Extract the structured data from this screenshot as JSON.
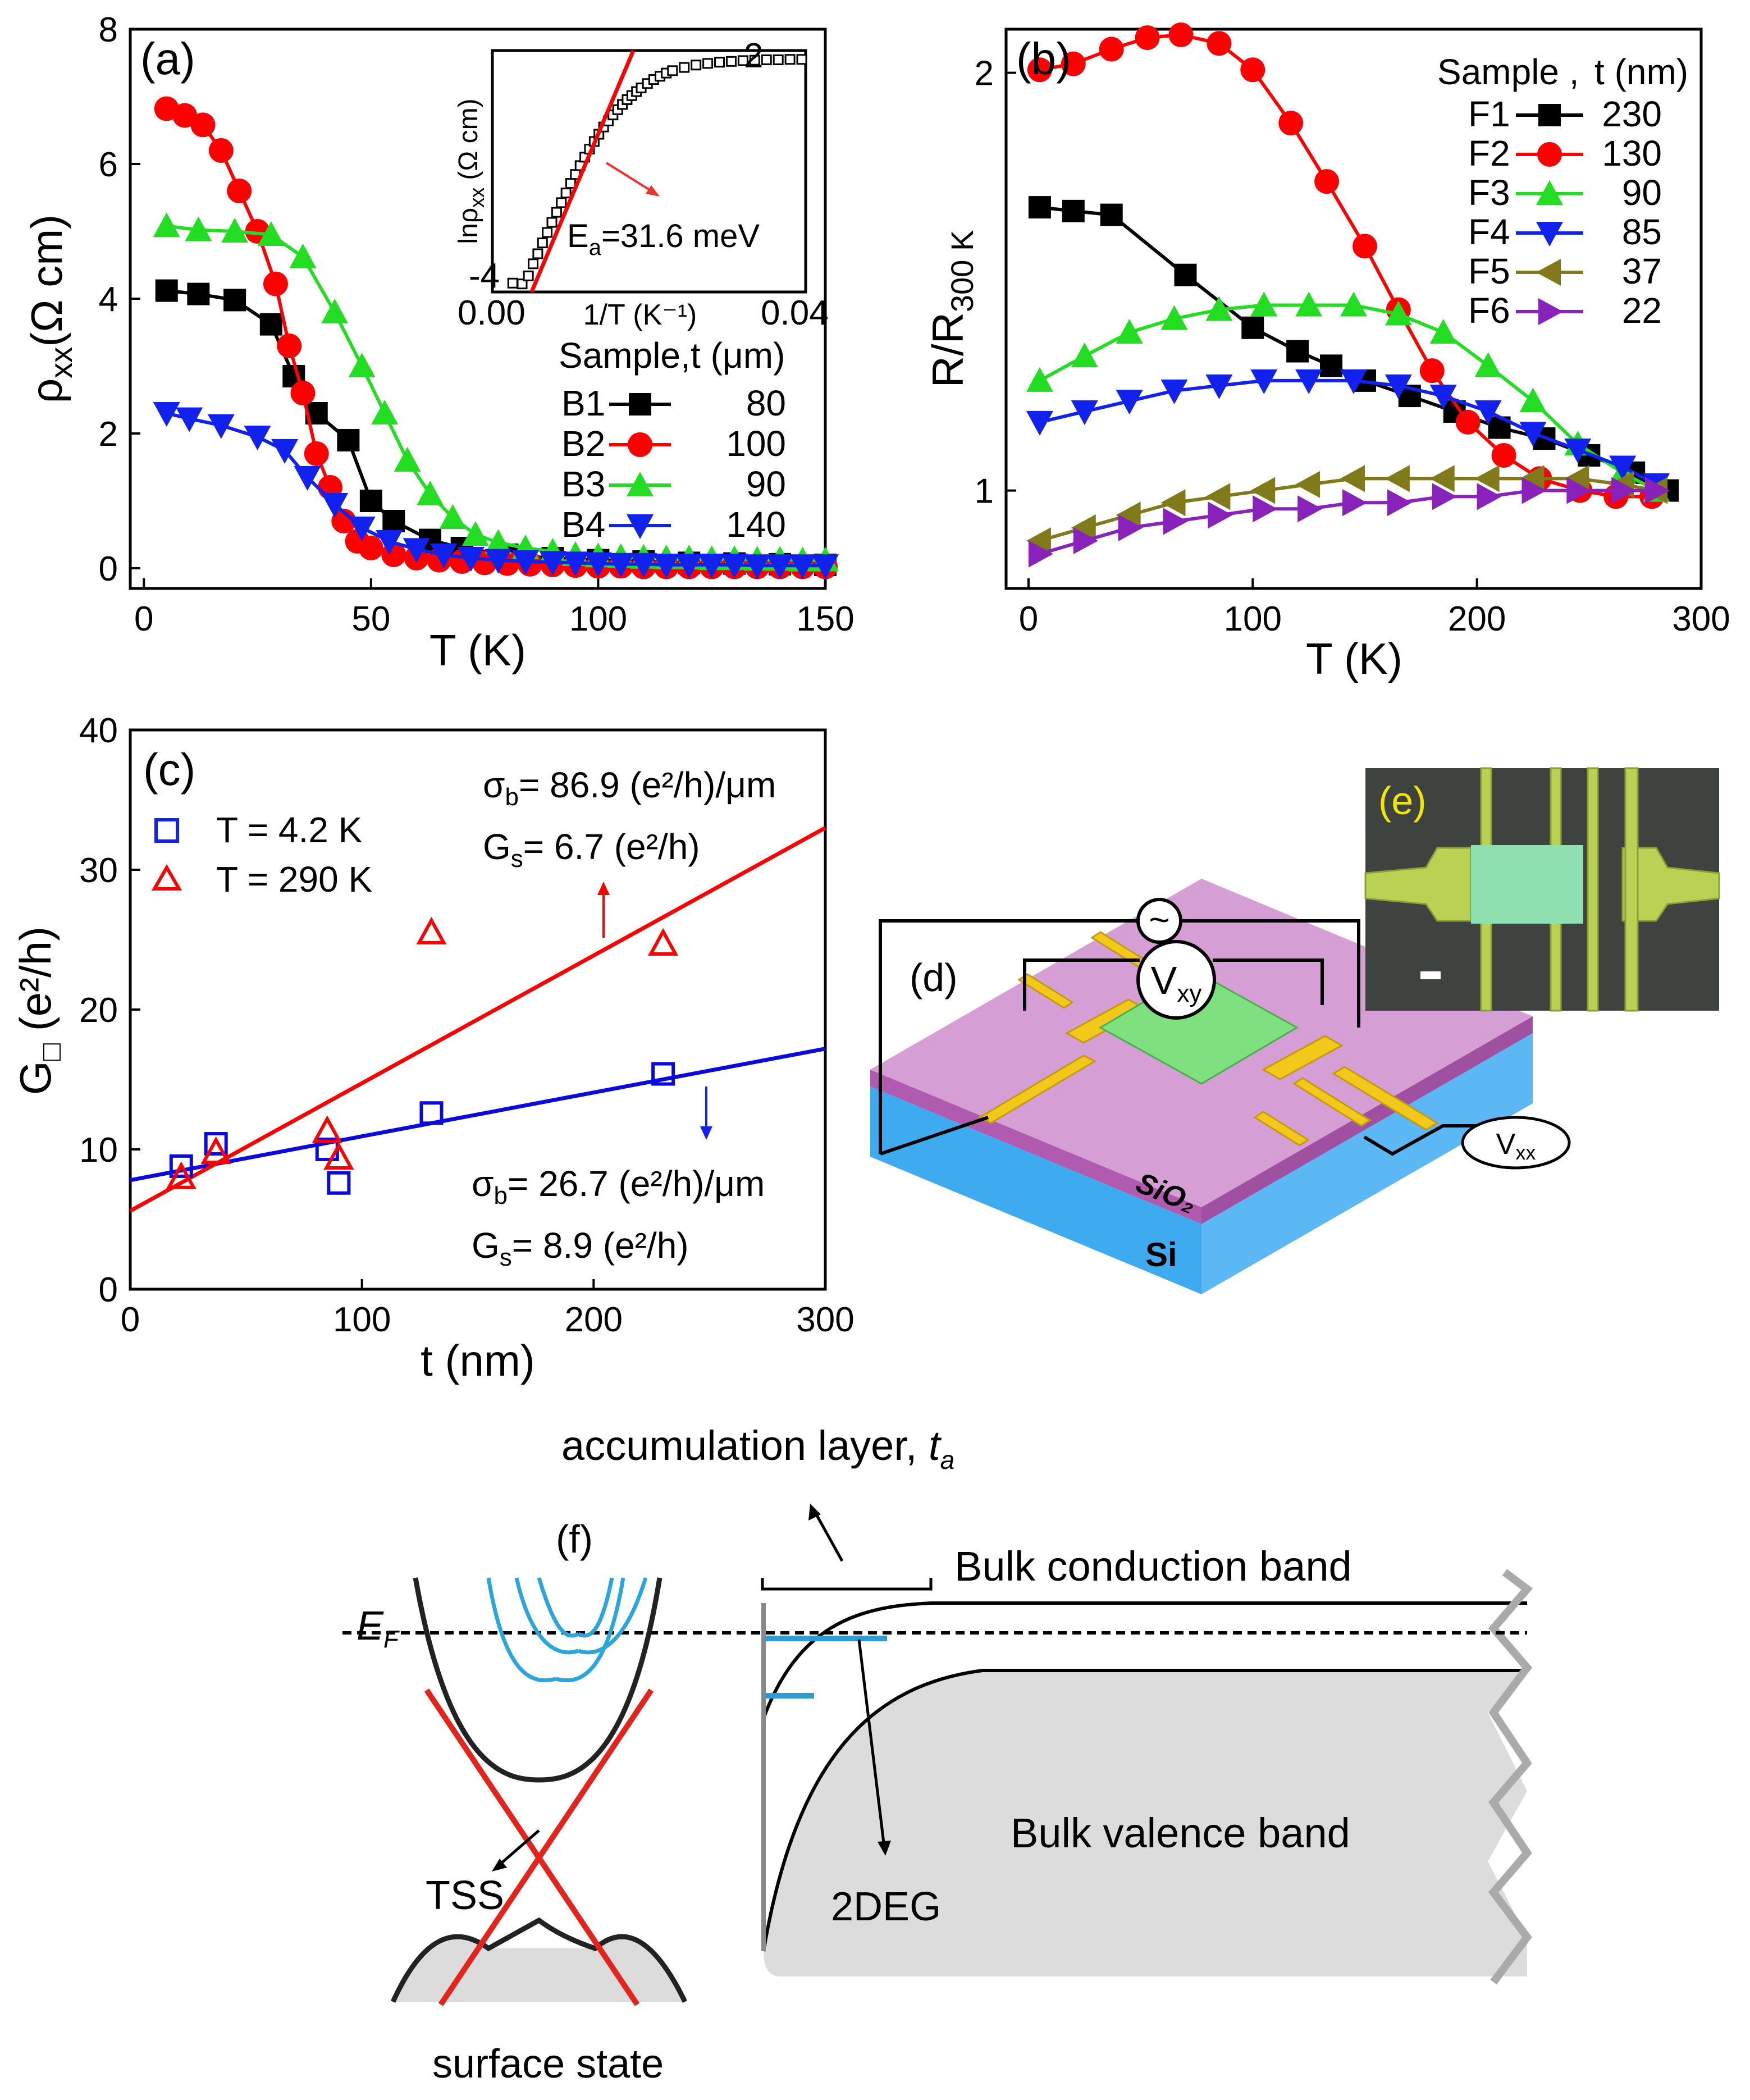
{
  "colors": {
    "B1": "#000000",
    "B2": "#ff0000",
    "B3": "#22dd22",
    "B4": "#1122ee",
    "F5": "#807a1a",
    "F6": "#8822bb",
    "red_fit": "#ff0000",
    "blue_fit": "#0a0adc"
  },
  "chart_data": [
    {
      "id": "a",
      "type": "line",
      "panel_label": "(a)",
      "xlabel": "T (K)",
      "ylabel": "ρ",
      "ylabel_sub": "xx",
      "ylabel_unit": "(Ω cm)",
      "xlim": [
        -3,
        150
      ],
      "ylim": [
        -0.3,
        8
      ],
      "xticks": [
        "0",
        "50",
        "100",
        "150"
      ],
      "yticks": [
        "0",
        "2",
        "4",
        "6",
        "8"
      ],
      "legend_title": "Sample,",
      "legend_title2": "t (μm)",
      "series": [
        {
          "name": "B1",
          "value": "80",
          "marker": "square",
          "x": [
            5,
            12,
            20,
            28,
            33,
            38,
            45,
            50,
            55,
            63,
            70,
            80,
            90,
            100,
            110,
            120,
            130,
            140,
            150
          ],
          "y": [
            4.12,
            4.07,
            3.98,
            3.62,
            2.85,
            2.3,
            1.9,
            1.0,
            0.7,
            0.42,
            0.3,
            0.2,
            0.15,
            0.12,
            0.1,
            0.08,
            0.07,
            0.06,
            0.05
          ]
        },
        {
          "name": "B2",
          "value": "100",
          "marker": "circle",
          "x": [
            5,
            9,
            13,
            17,
            21,
            25,
            29,
            32,
            35,
            38,
            41,
            44,
            47,
            50,
            55,
            60,
            65,
            70,
            75,
            80,
            85,
            90,
            95,
            100,
            105,
            110,
            115,
            120,
            125,
            130,
            135,
            140,
            145,
            150
          ],
          "y": [
            6.82,
            6.72,
            6.58,
            6.2,
            5.6,
            5.0,
            4.22,
            3.3,
            2.6,
            1.7,
            1.2,
            0.7,
            0.4,
            0.3,
            0.2,
            0.15,
            0.12,
            0.1,
            0.08,
            0.07,
            0.06,
            0.05,
            0.04,
            0.03,
            0.03,
            0.02,
            0.02,
            0.02,
            0.02,
            0.02,
            0.02,
            0.02,
            0.02,
            0.02
          ]
        },
        {
          "name": "B3",
          "value": "90",
          "marker": "triangle-up",
          "x": [
            5,
            12,
            20,
            28,
            35,
            42,
            48,
            53,
            58,
            63,
            68,
            73,
            78,
            84,
            90,
            95,
            100,
            105,
            110,
            115,
            120,
            125,
            130,
            135,
            140,
            145,
            150
          ],
          "y": [
            5.08,
            5.02,
            5.0,
            4.95,
            4.62,
            3.8,
            3.0,
            2.3,
            1.6,
            1.1,
            0.75,
            0.5,
            0.38,
            0.3,
            0.25,
            0.2,
            0.18,
            0.17,
            0.16,
            0.15,
            0.15,
            0.14,
            0.14,
            0.13,
            0.13,
            0.12,
            0.12
          ]
        },
        {
          "name": "B4",
          "value": "140",
          "marker": "triangle-down",
          "x": [
            5,
            10,
            17,
            25,
            31,
            36,
            42,
            48,
            54,
            60,
            66,
            72,
            78,
            84,
            90,
            95,
            100,
            105,
            110,
            115,
            120,
            125,
            130,
            135,
            140,
            145,
            150
          ],
          "y": [
            2.3,
            2.22,
            2.12,
            1.95,
            1.75,
            1.35,
            0.95,
            0.6,
            0.4,
            0.28,
            0.2,
            0.15,
            0.12,
            0.1,
            0.09,
            0.08,
            0.07,
            0.06,
            0.06,
            0.05,
            0.05,
            0.05,
            0.05,
            0.04,
            0.04,
            0.04,
            0.04
          ]
        }
      ],
      "inset": {
        "type": "scatter",
        "xlabel": "1/T (K⁻¹)",
        "ylabel": "lnρ",
        "ylabel_sub": "xx",
        "ylabel_unit": " (Ω cm)",
        "xlim": [
          0.0,
          0.04
        ],
        "ylim": [
          -4,
          2
        ],
        "xtick_labels": [
          "0.00",
          "0.04"
        ],
        "ytick_labels": [
          "2",
          "-4"
        ],
        "annotation": "E",
        "annotation_sub": "a",
        "annotation_rest": "=31.6 meV",
        "fit": {
          "x": [
            0.005,
            0.018
          ],
          "y": [
            -4.3,
            2.1
          ]
        },
        "x": [
          0.0026,
          0.0038,
          0.0046,
          0.0052,
          0.0058,
          0.0064,
          0.007,
          0.0076,
          0.0082,
          0.0088,
          0.0094,
          0.01,
          0.0106,
          0.0112,
          0.0118,
          0.0124,
          0.013,
          0.0136,
          0.0142,
          0.0148,
          0.0154,
          0.016,
          0.0166,
          0.0172,
          0.0178,
          0.0184,
          0.019,
          0.0198,
          0.0206,
          0.0214,
          0.0222,
          0.023,
          0.0245,
          0.026,
          0.0275,
          0.029,
          0.0305,
          0.032,
          0.0335,
          0.035,
          0.0365,
          0.038,
          0.0395
        ],
        "y": [
          -3.78,
          -3.8,
          -3.6,
          -3.3,
          -3.05,
          -2.78,
          -2.52,
          -2.27,
          -2.02,
          -1.78,
          -1.54,
          -1.3,
          -1.08,
          -0.86,
          -0.65,
          -0.45,
          -0.26,
          -0.08,
          0.1,
          0.25,
          0.4,
          0.53,
          0.66,
          0.78,
          0.88,
          0.98,
          1.07,
          1.18,
          1.28,
          1.36,
          1.44,
          1.5,
          1.58,
          1.64,
          1.68,
          1.71,
          1.73,
          1.75,
          1.76,
          1.77,
          1.77,
          1.78,
          1.78
        ]
      }
    },
    {
      "id": "b",
      "type": "line",
      "panel_label": "(b)",
      "xlabel": "T (K)",
      "ylabel": "R/R",
      "ylabel_sub": "300 K",
      "xlim": [
        -10,
        300
      ],
      "ylim": [
        0.85,
        2.15
      ],
      "log_y": true,
      "xticks": [
        "0",
        "100",
        "200",
        "300"
      ],
      "yticks": [
        "1",
        "2"
      ],
      "legend_title": "Sample ,",
      "legend_title2": "t (nm)",
      "series": [
        {
          "name": "F1",
          "value": "230",
          "marker": "square",
          "x": [
            5,
            20,
            37,
            70,
            100,
            120,
            135,
            150,
            170,
            190,
            210,
            230,
            250,
            270,
            285
          ],
          "y": [
            1.6,
            1.59,
            1.58,
            1.43,
            1.31,
            1.26,
            1.23,
            1.2,
            1.17,
            1.14,
            1.11,
            1.09,
            1.06,
            1.03,
            1.0
          ]
        },
        {
          "name": "F2",
          "value": "130",
          "marker": "circle",
          "x": [
            5,
            20,
            37,
            53,
            68,
            85,
            100,
            117,
            133,
            150,
            165,
            180,
            196,
            212,
            228,
            246,
            262,
            278
          ],
          "y": [
            2.01,
            2.03,
            2.08,
            2.12,
            2.13,
            2.1,
            2.01,
            1.84,
            1.67,
            1.5,
            1.35,
            1.22,
            1.12,
            1.06,
            1.02,
            1.0,
            0.99,
            0.99
          ]
        },
        {
          "name": "F3",
          "value": "90",
          "marker": "triangle-up",
          "x": [
            5,
            25,
            45,
            65,
            85,
            105,
            125,
            145,
            165,
            185,
            205,
            225,
            245,
            265,
            280
          ],
          "y": [
            1.2,
            1.25,
            1.3,
            1.33,
            1.35,
            1.36,
            1.36,
            1.36,
            1.34,
            1.3,
            1.23,
            1.16,
            1.08,
            1.03,
            1.0
          ]
        },
        {
          "name": "F4",
          "value": "85",
          "marker": "triangle-down",
          "x": [
            5,
            25,
            45,
            65,
            85,
            105,
            125,
            145,
            165,
            185,
            205,
            225,
            245,
            265,
            280
          ],
          "y": [
            1.12,
            1.14,
            1.16,
            1.18,
            1.19,
            1.2,
            1.2,
            1.2,
            1.19,
            1.17,
            1.14,
            1.1,
            1.07,
            1.04,
            1.01
          ]
        },
        {
          "name": "F5",
          "value": "37",
          "marker": "triangle-left",
          "x": [
            5,
            25,
            45,
            65,
            85,
            105,
            125,
            145,
            165,
            185,
            205,
            225,
            245,
            265,
            280
          ],
          "y": [
            0.92,
            0.94,
            0.96,
            0.98,
            0.99,
            1.0,
            1.01,
            1.02,
            1.02,
            1.02,
            1.02,
            1.02,
            1.02,
            1.01,
            1.0
          ]
        },
        {
          "name": "F6",
          "value": "22",
          "marker": "triangle-right",
          "x": [
            5,
            25,
            45,
            65,
            85,
            105,
            125,
            145,
            165,
            185,
            205,
            225,
            245,
            265,
            280
          ],
          "y": [
            0.9,
            0.92,
            0.94,
            0.95,
            0.96,
            0.97,
            0.97,
            0.98,
            0.98,
            0.99,
            0.99,
            1.0,
            1.0,
            1.0,
            1.0
          ]
        }
      ]
    },
    {
      "id": "c",
      "type": "scatter",
      "panel_label": "(c)",
      "xlabel": "t (nm)",
      "ylabel": "G",
      "ylabel_sub": "□",
      "ylabel_unit": " (e²/h)",
      "xlim": [
        0,
        300
      ],
      "ylim": [
        0,
        40
      ],
      "xticks": [
        "0",
        "100",
        "200",
        "300"
      ],
      "yticks": [
        "0",
        "10",
        "20",
        "30",
        "40"
      ],
      "series": [
        {
          "name": "T =  4.2 K",
          "marker": "open-square",
          "x": [
            22,
            37,
            85,
            90,
            130,
            230
          ],
          "y": [
            8.8,
            10.4,
            10.0,
            7.6,
            12.6,
            15.4
          ],
          "fit": {
            "x": [
              0,
              300
            ],
            "y": [
              7.8,
              17.2
            ]
          }
        },
        {
          "name": "T = 290 K",
          "marker": "open-triangle",
          "x": [
            22,
            37,
            85,
            90,
            130,
            230
          ],
          "y": [
            8.0,
            9.8,
            11.3,
            9.4,
            25.5,
            24.7
          ],
          "fit": {
            "x": [
              0,
              300
            ],
            "y": [
              5.6,
              33.0
            ]
          }
        }
      ],
      "annotations": {
        "red_sigma": "σ",
        "red_sigma_sub": "b",
        "red_sigma_rest": "= 86.9 (e²/h)/μm",
        "red_gs": "G",
        "red_gs_sub": "s",
        "red_gs_rest": "= 6.7 (e²/h)",
        "blue_sigma": "σ",
        "blue_sigma_sub": "b",
        "blue_sigma_rest": "= 26.7 (e²/h)/μm",
        "blue_gs": "G",
        "blue_gs_sub": "s",
        "blue_gs_rest": "= 8.9 (e²/h)"
      }
    }
  ],
  "panel_d": {
    "label": "(d)",
    "vxy": "V",
    "vxy_sub": "xy",
    "vxx": "V",
    "vxx_sub": "xx",
    "sio2": "SiO₂",
    "si": "Si",
    "source": "~"
  },
  "panel_e": {
    "label": "(e)"
  },
  "panel_f": {
    "label": "(f)",
    "title": "accumulation layer, ",
    "title_ita": "t",
    "title_sub": "a",
    "ef": "E",
    "ef_sub": "F",
    "cond": "Bulk conduction band",
    "val": "Bulk valence band",
    "tss": "TSS",
    "twodeg": "2DEG",
    "surface": "surface state"
  }
}
